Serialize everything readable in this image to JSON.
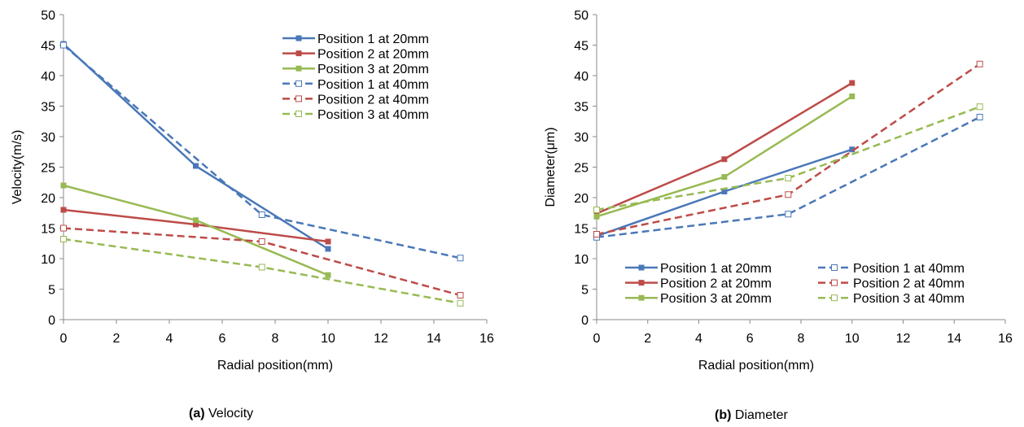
{
  "captions": {
    "a_label": "(a)",
    "a_text": " Velocity",
    "b_label": "(b)",
    "b_text": " Diameter"
  },
  "colors": {
    "blue": "#4a78b8",
    "red": "#bd4b48",
    "green": "#97ba53"
  },
  "chart_data": [
    {
      "type": "line",
      "title": "",
      "xlabel": "Radial position(mm)",
      "ylabel": "Velocity(m/s)",
      "xlim": [
        0,
        16
      ],
      "ylim": [
        0,
        50
      ],
      "xticks": [
        0,
        2,
        4,
        6,
        8,
        10,
        12,
        14,
        16
      ],
      "yticks": [
        0,
        5,
        10,
        15,
        20,
        25,
        30,
        35,
        40,
        45,
        50
      ],
      "grid": false,
      "legend": "top-right, one column",
      "series": [
        {
          "name": "Position 1 at 20mm",
          "color": "blue",
          "style": "solid",
          "marker": "filled-square",
          "x": [
            0,
            5,
            10
          ],
          "y": [
            45.2,
            25.2,
            11.6
          ]
        },
        {
          "name": "Position 2 at 20mm",
          "color": "red",
          "style": "solid",
          "marker": "filled-square",
          "x": [
            0,
            5,
            10
          ],
          "y": [
            18.0,
            15.6,
            12.8
          ]
        },
        {
          "name": "Position 3 at 20mm",
          "color": "green",
          "style": "solid",
          "marker": "filled-square",
          "x": [
            0,
            5,
            10
          ],
          "y": [
            22.0,
            16.3,
            7.3
          ]
        },
        {
          "name": "Position 1 at 40mm",
          "color": "blue",
          "style": "dashed",
          "marker": "open-square",
          "x": [
            0,
            7.5,
            15
          ],
          "y": [
            45.0,
            17.2,
            10.1
          ]
        },
        {
          "name": "Position 2 at 40mm",
          "color": "red",
          "style": "dashed",
          "marker": "open-square",
          "x": [
            0,
            7.5,
            15
          ],
          "y": [
            15.0,
            12.8,
            4.0
          ]
        },
        {
          "name": "Position 3 at 40mm",
          "color": "green",
          "style": "dashed",
          "marker": "open-square",
          "x": [
            0,
            7.5,
            15
          ],
          "y": [
            13.2,
            8.6,
            2.7
          ]
        }
      ]
    },
    {
      "type": "line",
      "title": "",
      "xlabel": "Radial position(mm)",
      "ylabel": "Diameter(μm)",
      "xlim": [
        0,
        16
      ],
      "ylim": [
        0,
        50
      ],
      "xticks": [
        0,
        2,
        4,
        6,
        8,
        10,
        12,
        14,
        16
      ],
      "yticks": [
        0,
        5,
        10,
        15,
        20,
        25,
        30,
        35,
        40,
        45,
        50
      ],
      "grid": false,
      "legend": "bottom-right, two columns",
      "series": [
        {
          "name": "Position 1 at 20mm",
          "color": "blue",
          "style": "solid",
          "marker": "filled-square",
          "x": [
            0,
            5,
            10
          ],
          "y": [
            13.7,
            21.0,
            27.9
          ]
        },
        {
          "name": "Position 1 at 40mm",
          "color": "blue",
          "style": "dashed",
          "marker": "open-square",
          "x": [
            0,
            7.5,
            15
          ],
          "y": [
            13.5,
            17.3,
            33.2
          ]
        },
        {
          "name": "Position 2 at 20mm",
          "color": "red",
          "style": "solid",
          "marker": "filled-square",
          "x": [
            0,
            5,
            10
          ],
          "y": [
            17.4,
            26.3,
            38.8
          ]
        },
        {
          "name": "Position 2 at 40mm",
          "color": "red",
          "style": "dashed",
          "marker": "open-square",
          "x": [
            0,
            7.5,
            15
          ],
          "y": [
            14.0,
            20.5,
            41.9
          ]
        },
        {
          "name": "Position 3 at 20mm",
          "color": "green",
          "style": "solid",
          "marker": "filled-square",
          "x": [
            0,
            5,
            10
          ],
          "y": [
            16.9,
            23.4,
            36.6
          ]
        },
        {
          "name": "Position 3 at 40mm",
          "color": "green",
          "style": "dashed",
          "marker": "open-square",
          "x": [
            0,
            7.5,
            15
          ],
          "y": [
            18.0,
            23.2,
            34.9
          ]
        }
      ]
    }
  ]
}
